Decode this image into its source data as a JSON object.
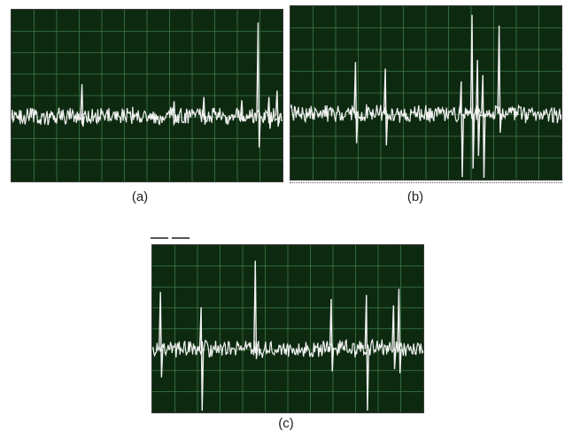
{
  "figure": {
    "panels": [
      {
        "id": "a",
        "caption": "(a)",
        "grid_cols": 12,
        "grid_rows": 8,
        "spikes": [
          {
            "x": 0.26,
            "up": 0.3,
            "down": 0.1
          },
          {
            "x": 0.6,
            "up": 0.14,
            "down": 0.06
          },
          {
            "x": 0.71,
            "up": 0.18,
            "down": 0.08
          },
          {
            "x": 0.85,
            "up": 0.15,
            "down": 0.05
          },
          {
            "x": 0.91,
            "up": 0.88,
            "down": 0.3
          },
          {
            "x": 0.95,
            "up": 0.18,
            "down": 0.12
          },
          {
            "x": 0.98,
            "up": 0.24,
            "down": 0.1
          }
        ]
      },
      {
        "id": "b",
        "caption": "(b)",
        "grid_cols": 12,
        "grid_rows": 8,
        "spikes": [
          {
            "x": 0.24,
            "up": 0.48,
            "down": 0.28
          },
          {
            "x": 0.35,
            "up": 0.42,
            "down": 0.3
          },
          {
            "x": 0.63,
            "up": 0.3,
            "down": 0.6
          },
          {
            "x": 0.67,
            "up": 0.92,
            "down": 0.52
          },
          {
            "x": 0.69,
            "up": 0.5,
            "down": 0.4
          },
          {
            "x": 0.71,
            "up": 0.36,
            "down": 0.62
          },
          {
            "x": 0.77,
            "up": 0.82,
            "down": 0.18
          }
        ]
      },
      {
        "id": "c",
        "caption": "(c)",
        "grid_cols": 12,
        "grid_rows": 8,
        "spikes": [
          {
            "x": 0.03,
            "up": 0.55,
            "down": 0.28
          },
          {
            "x": 0.18,
            "up": 0.4,
            "down": 0.8
          },
          {
            "x": 0.38,
            "up": 0.85,
            "down": 0.1
          },
          {
            "x": 0.66,
            "up": 0.48,
            "down": 0.22
          },
          {
            "x": 0.79,
            "up": 0.52,
            "down": 0.82
          },
          {
            "x": 0.89,
            "up": 0.42,
            "down": 0.2
          },
          {
            "x": 0.91,
            "up": 0.58,
            "down": 0.24
          }
        ]
      }
    ],
    "colors": {
      "screen_bg": "#0d2a10",
      "grid": "#3f7a46",
      "trace": "#f2f2f2"
    }
  }
}
